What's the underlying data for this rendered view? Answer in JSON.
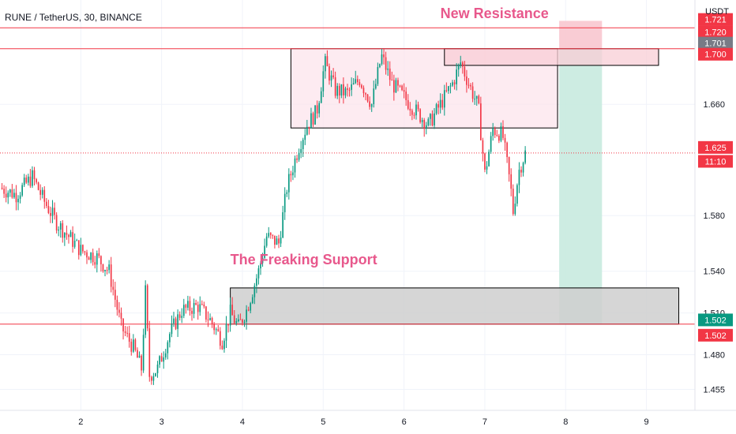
{
  "header": {
    "title": "RUNE / TetherUS, 30, BINANCE",
    "currency": "USDT"
  },
  "chart_data": {
    "type": "candlestick",
    "ylim": [
      1.44,
      1.735
    ],
    "xlim": [
      1.0,
      9.6
    ],
    "x_ticks": [
      {
        "label": "2",
        "value": 2
      },
      {
        "label": "3",
        "value": 3
      },
      {
        "label": "4",
        "value": 4
      },
      {
        "label": "5",
        "value": 5
      },
      {
        "label": "6",
        "value": 6
      },
      {
        "label": "7",
        "value": 7
      },
      {
        "label": "8",
        "value": 8
      },
      {
        "label": "9",
        "value": 9
      }
    ],
    "y_ticks": [
      {
        "label": "1.455",
        "value": 1.455
      },
      {
        "label": "1.480",
        "value": 1.48
      },
      {
        "label": "1.510",
        "value": 1.51
      },
      {
        "label": "1.540",
        "value": 1.54
      },
      {
        "label": "1.580",
        "value": 1.58
      },
      {
        "label": "1.660",
        "value": 1.66
      }
    ],
    "series": [
      {
        "x": 1.0,
        "y": 1.6
      },
      {
        "x": 1.2,
        "y": 1.595
      },
      {
        "x": 1.4,
        "y": 1.608
      },
      {
        "x": 1.55,
        "y": 1.59
      },
      {
        "x": 1.7,
        "y": 1.575
      },
      {
        "x": 1.85,
        "y": 1.565
      },
      {
        "x": 2.0,
        "y": 1.555
      },
      {
        "x": 2.2,
        "y": 1.55
      },
      {
        "x": 2.35,
        "y": 1.54
      },
      {
        "x": 2.5,
        "y": 1.5
      },
      {
        "x": 2.65,
        "y": 1.485
      },
      {
        "x": 2.75,
        "y": 1.47
      },
      {
        "x": 2.8,
        "y": 1.525
      },
      {
        "x": 2.85,
        "y": 1.465
      },
      {
        "x": 2.95,
        "y": 1.47
      },
      {
        "x": 3.1,
        "y": 1.495
      },
      {
        "x": 3.25,
        "y": 1.512
      },
      {
        "x": 3.45,
        "y": 1.515
      },
      {
        "x": 3.6,
        "y": 1.505
      },
      {
        "x": 3.75,
        "y": 1.49
      },
      {
        "x": 3.85,
        "y": 1.51
      },
      {
        "x": 3.95,
        "y": 1.5
      },
      {
        "x": 4.05,
        "y": 1.512
      },
      {
        "x": 4.2,
        "y": 1.54
      },
      {
        "x": 4.3,
        "y": 1.565
      },
      {
        "x": 4.45,
        "y": 1.56
      },
      {
        "x": 4.55,
        "y": 1.6
      },
      {
        "x": 4.7,
        "y": 1.63
      },
      {
        "x": 4.8,
        "y": 1.645
      },
      {
        "x": 4.92,
        "y": 1.655
      },
      {
        "x": 5.02,
        "y": 1.69
      },
      {
        "x": 5.15,
        "y": 1.67
      },
      {
        "x": 5.3,
        "y": 1.668
      },
      {
        "x": 5.45,
        "y": 1.678
      },
      {
        "x": 5.6,
        "y": 1.66
      },
      {
        "x": 5.72,
        "y": 1.695
      },
      {
        "x": 5.85,
        "y": 1.675
      },
      {
        "x": 6.0,
        "y": 1.665
      },
      {
        "x": 6.15,
        "y": 1.655
      },
      {
        "x": 6.3,
        "y": 1.645
      },
      {
        "x": 6.45,
        "y": 1.66
      },
      {
        "x": 6.6,
        "y": 1.675
      },
      {
        "x": 6.7,
        "y": 1.69
      },
      {
        "x": 6.8,
        "y": 1.675
      },
      {
        "x": 6.92,
        "y": 1.658
      },
      {
        "x": 7.0,
        "y": 1.61
      },
      {
        "x": 7.1,
        "y": 1.642
      },
      {
        "x": 7.22,
        "y": 1.638
      },
      {
        "x": 7.32,
        "y": 1.6
      },
      {
        "x": 7.35,
        "y": 1.583
      },
      {
        "x": 7.42,
        "y": 1.612
      },
      {
        "x": 7.5,
        "y": 1.625
      }
    ],
    "levels": [
      {
        "name": "resistance-top",
        "value": 1.715,
        "color": "#f23645"
      },
      {
        "name": "resistance",
        "value": 1.7,
        "color": "#f23645"
      },
      {
        "name": "support",
        "value": 1.502,
        "color": "#f23645"
      }
    ],
    "last_price_line": 1.625,
    "zones": [
      {
        "name": "range-box",
        "x0": 4.6,
        "x1": 7.9,
        "y0": 1.643,
        "y1": 1.7,
        "fill": "#fce4ec",
        "stroke": "#000000"
      },
      {
        "name": "resistance-zone",
        "x0": 6.5,
        "x1": 9.15,
        "y0": 1.688,
        "y1": 1.7,
        "fill": "#f8cdd6",
        "stroke": "#000000"
      },
      {
        "name": "support-zone",
        "x0": 3.85,
        "x1": 9.4,
        "y0": 1.502,
        "y1": 1.528,
        "fill": "#cfcfcf",
        "stroke": "#000000"
      }
    ],
    "position": {
      "x0": 7.92,
      "x1": 8.45,
      "entry": 1.7,
      "stop": 1.72,
      "target": 1.502,
      "stop_color": "#f8c6cf",
      "target_color": "#c8eadf"
    },
    "annotations": [
      {
        "text": "New Resistance",
        "x": 6.45,
        "y": 1.722
      },
      {
        "text": "The Freaking Support",
        "x": 3.85,
        "y": 1.545
      }
    ],
    "price_tags": [
      {
        "label": "1.721",
        "value": 1.721,
        "bg": "#f23645"
      },
      {
        "label": "1.720",
        "value": 1.712,
        "bg": "#f23645"
      },
      {
        "label": "1.701",
        "value": 1.704,
        "bg": "#787b86"
      },
      {
        "label": "1.700",
        "value": 1.696,
        "bg": "#f23645"
      },
      {
        "label": "1.625",
        "value": 1.629,
        "bg": "#f23645"
      },
      {
        "label": "11:10",
        "value": 1.619,
        "bg": "#f23645"
      },
      {
        "label": "1.502",
        "value": 1.505,
        "bg": "#089981"
      },
      {
        "label": "1.502",
        "value": 1.494,
        "bg": "#f23645"
      }
    ],
    "colors": {
      "up": "#089981",
      "down": "#f23645",
      "grid": "#f0f3fa"
    }
  }
}
